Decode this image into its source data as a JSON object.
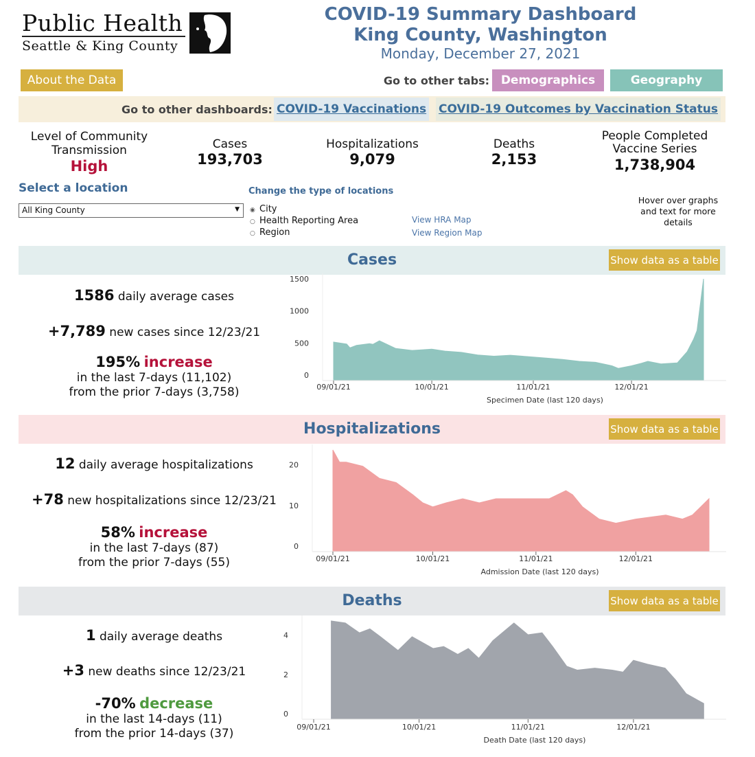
{
  "logo": {
    "line1": "Public Health",
    "line2": "Seattle & King County"
  },
  "header": {
    "title1": "COVID-19 Summary Dashboard",
    "title2": "King County, Washington",
    "date": "Monday, December 27, 2021"
  },
  "buttons": {
    "about": "About the Data",
    "other_tabs_label": "Go to other tabs:",
    "demographics": "Demographics",
    "geography": "Geography"
  },
  "colors": {
    "about": "#d6b03f",
    "demographics": "#c88fbe",
    "geography": "#86c3b8",
    "accent": "#3f6a96",
    "high": "#b5123a",
    "increase": "#b5123a",
    "decrease": "#4f9a3f",
    "cases": "#8cc2bc",
    "hosp": "#f09c9c",
    "deaths": "#9ca1a8"
  },
  "dashboards": {
    "label": "Go to other dashboards:",
    "vaccinations": "COVID-19 Vaccinations",
    "outcomes": "COVID-19 Outcomes by Vaccination Status"
  },
  "kpis": {
    "transmission_label1": "Level of Community",
    "transmission_label2": "Transmission",
    "transmission_value": "High",
    "cases_label": "Cases",
    "cases_value": "193,703",
    "hosp_label": "Hospitalizations",
    "hosp_value": "9,079",
    "deaths_label": "Deaths",
    "deaths_value": "2,153",
    "vacc_label1": "People Completed",
    "vacc_label2": "Vaccine Series",
    "vacc_value": "1,738,904"
  },
  "location": {
    "label": "Select a location",
    "selected": "All King County",
    "type_label": "Change the type of locations",
    "types": [
      "City",
      "Health Reporting Area",
      "Region"
    ],
    "selected_type": "City",
    "hra_map": "View HRA Map",
    "region_map": "View Region Map",
    "hover_note": "Hover over graphs and text for more details"
  },
  "sections": {
    "cases": {
      "title": "Cases",
      "table_btn": "Show data as a table",
      "avg_num": "1586",
      "avg_text": " daily average cases",
      "new_num": "+7,789",
      "new_text": " new cases since 12/23/21",
      "pct": "195%",
      "dir": "increase",
      "line1": "in the last 7-days (11,102)",
      "line2": "from the prior 7-days (3,758)"
    },
    "hosp": {
      "title": "Hospitalizations",
      "table_btn": "Show data as a table",
      "avg_num": "12",
      "avg_text": " daily average hospitalizations",
      "new_num": "+78",
      "new_text": " new hospitalizations since 12/23/21",
      "pct": "58%",
      "dir": "increase",
      "line1": "in the last 7-days (87)",
      "line2": "from the prior 7-days (55)"
    },
    "deaths": {
      "title": "Deaths",
      "table_btn": "Show data as a table",
      "avg_num": "1",
      "avg_text": " daily average deaths",
      "new_num": "+3",
      "new_text": " new deaths since 12/23/21",
      "pct": "-70%",
      "dir": "decrease",
      "line1": "in the last 14-days (11)",
      "line2": "from the prior 14-days (37)"
    }
  },
  "chart_data": [
    {
      "type": "area",
      "id": "cases",
      "xlabel": "Specimen Date (last 120 days)",
      "xticks": [
        "09/01/21",
        "10/01/21",
        "11/01/21",
        "12/01/21"
      ],
      "yticks": [
        0,
        500,
        1000,
        1500
      ],
      "ylim": [
        0,
        1600
      ],
      "points": [
        [
          "2021-09-01",
          600
        ],
        [
          "2021-09-05",
          570
        ],
        [
          "2021-09-06",
          510
        ],
        [
          "2021-09-08",
          550
        ],
        [
          "2021-09-12",
          575
        ],
        [
          "2021-09-13",
          565
        ],
        [
          "2021-09-15",
          620
        ],
        [
          "2021-09-20",
          500
        ],
        [
          "2021-09-25",
          470
        ],
        [
          "2021-10-01",
          490
        ],
        [
          "2021-10-05",
          460
        ],
        [
          "2021-10-10",
          440
        ],
        [
          "2021-10-15",
          400
        ],
        [
          "2021-10-20",
          380
        ],
        [
          "2021-10-25",
          395
        ],
        [
          "2021-10-30",
          375
        ],
        [
          "2021-11-05",
          350
        ],
        [
          "2021-11-10",
          330
        ],
        [
          "2021-11-15",
          300
        ],
        [
          "2021-11-20",
          285
        ],
        [
          "2021-11-25",
          230
        ],
        [
          "2021-11-27",
          190
        ],
        [
          "2021-12-01",
          230
        ],
        [
          "2021-12-04",
          270
        ],
        [
          "2021-12-06",
          300
        ],
        [
          "2021-12-10",
          260
        ],
        [
          "2021-12-15",
          275
        ],
        [
          "2021-12-18",
          450
        ],
        [
          "2021-12-20",
          650
        ],
        [
          "2021-12-21",
          780
        ],
        [
          "2021-12-23",
          1586
        ]
      ]
    },
    {
      "type": "area",
      "id": "hosp",
      "xlabel": "Admission Date (last 120 days)",
      "xticks": [
        "09/01/21",
        "10/01/21",
        "11/01/21",
        "12/01/21"
      ],
      "yticks": [
        0,
        10,
        20
      ],
      "ylim": [
        0,
        26
      ],
      "points": [
        [
          "2021-09-01",
          25
        ],
        [
          "2021-09-03",
          22
        ],
        [
          "2021-09-05",
          22
        ],
        [
          "2021-09-10",
          21
        ],
        [
          "2021-09-15",
          18
        ],
        [
          "2021-09-20",
          17
        ],
        [
          "2021-09-25",
          14
        ],
        [
          "2021-09-28",
          12
        ],
        [
          "2021-10-01",
          11
        ],
        [
          "2021-10-05",
          12
        ],
        [
          "2021-10-10",
          13
        ],
        [
          "2021-10-15",
          12
        ],
        [
          "2021-10-20",
          13
        ],
        [
          "2021-10-25",
          13
        ],
        [
          "2021-10-30",
          13
        ],
        [
          "2021-11-05",
          13
        ],
        [
          "2021-11-10",
          15
        ],
        [
          "2021-11-12",
          14
        ],
        [
          "2021-11-15",
          11
        ],
        [
          "2021-11-20",
          8
        ],
        [
          "2021-11-25",
          7
        ],
        [
          "2021-12-01",
          8
        ],
        [
          "2021-12-10",
          9
        ],
        [
          "2021-12-15",
          8
        ],
        [
          "2021-12-18",
          9
        ],
        [
          "2021-12-23",
          13
        ]
      ]
    },
    {
      "type": "area",
      "id": "deaths",
      "xlabel": "Death Date (last 120 days)",
      "xticks": [
        "09/01/21",
        "10/01/21",
        "11/01/21",
        "12/01/21"
      ],
      "yticks": [
        0,
        2,
        4
      ],
      "ylim": [
        0,
        5.2
      ],
      "points": [
        [
          "2021-09-06",
          5
        ],
        [
          "2021-09-10",
          4.9
        ],
        [
          "2021-09-14",
          4.4
        ],
        [
          "2021-09-17",
          4.6
        ],
        [
          "2021-09-20",
          4.2
        ],
        [
          "2021-09-25",
          3.5
        ],
        [
          "2021-09-29",
          4.2
        ],
        [
          "2021-10-05",
          3.6
        ],
        [
          "2021-10-08",
          3.7
        ],
        [
          "2021-10-12",
          3.3
        ],
        [
          "2021-10-15",
          3.6
        ],
        [
          "2021-10-18",
          3.1
        ],
        [
          "2021-10-22",
          4.0
        ],
        [
          "2021-10-28",
          4.9
        ],
        [
          "2021-11-01",
          4.3
        ],
        [
          "2021-11-05",
          4.4
        ],
        [
          "2021-11-08",
          3.7
        ],
        [
          "2021-11-12",
          2.7
        ],
        [
          "2021-11-15",
          2.5
        ],
        [
          "2021-11-20",
          2.6
        ],
        [
          "2021-11-25",
          2.5
        ],
        [
          "2021-11-28",
          2.4
        ],
        [
          "2021-12-01",
          3.0
        ],
        [
          "2021-12-05",
          2.8
        ],
        [
          "2021-12-10",
          2.6
        ],
        [
          "2021-12-13",
          2.0
        ],
        [
          "2021-12-16",
          1.3
        ],
        [
          "2021-12-19",
          1.0
        ],
        [
          "2021-12-21",
          0.8
        ]
      ]
    }
  ]
}
